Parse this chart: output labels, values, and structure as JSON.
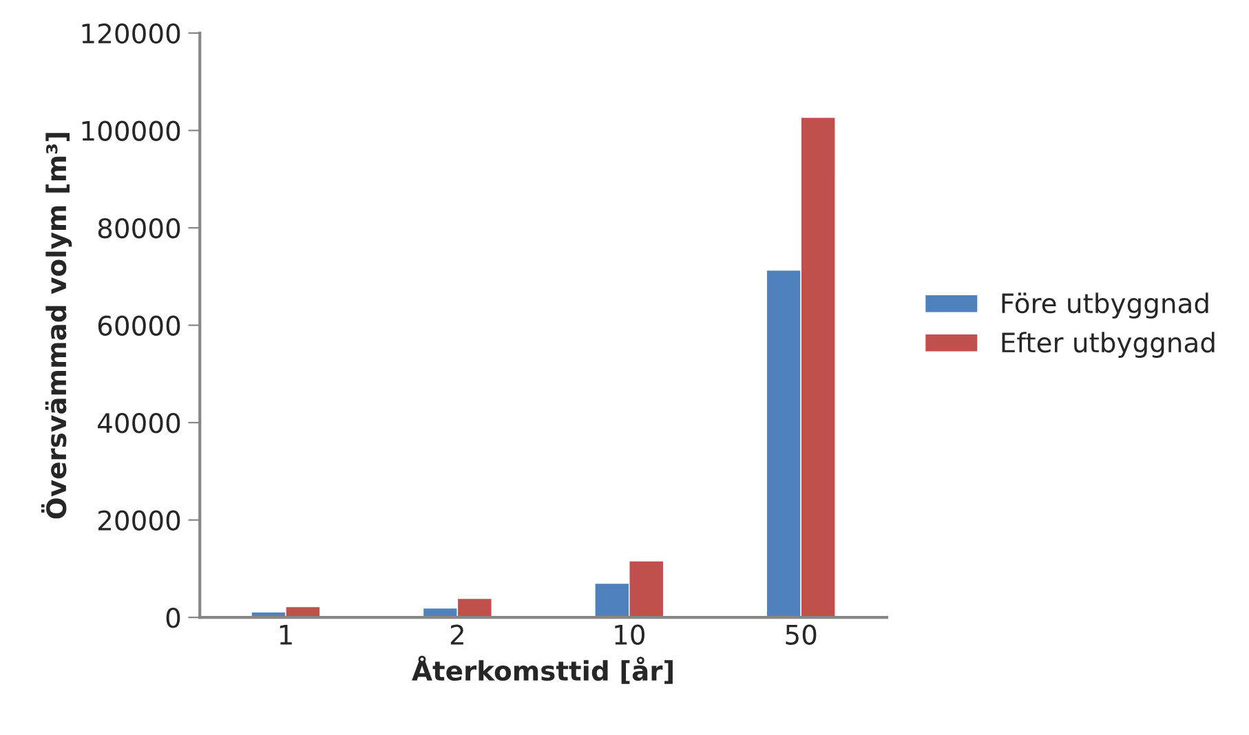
{
  "chart_data": {
    "type": "bar",
    "xlabel": "Återkomsttid [år]",
    "ylabel": "Översvämmad volym [m³]",
    "categories": [
      "1",
      "2",
      "10",
      "50"
    ],
    "series": [
      {
        "name": "Före utbyggnad",
        "color": "#4f81bd",
        "values": [
          1100,
          1900,
          7000,
          71300
        ]
      },
      {
        "name": "Efter utbyggnad",
        "color": "#c0504d",
        "values": [
          2200,
          3900,
          11600,
          102700
        ]
      }
    ],
    "ylim": [
      0,
      120000
    ],
    "yticks": [
      0,
      20000,
      40000,
      60000,
      80000,
      100000,
      120000
    ],
    "grid": false,
    "legend": "right"
  }
}
